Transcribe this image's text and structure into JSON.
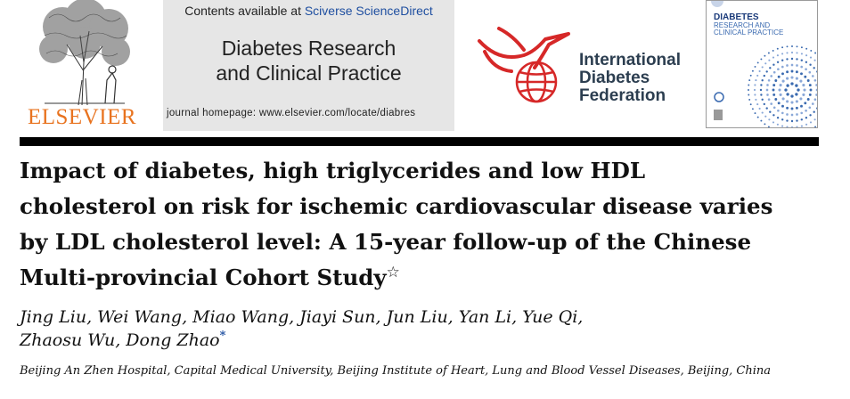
{
  "publisher": {
    "wordmark": "ELSEVIER",
    "wordmark_color": "#e8731f"
  },
  "journal_box": {
    "contents_prefix": "Contents available at ",
    "contents_link": "Sciverse ScienceDirect",
    "journal_title_line1": "Diabetes Research",
    "journal_title_line2": "and Clinical Practice",
    "homepage": "journal homepage: www.elsevier.com/locate/diabres",
    "background": "#e6e6e6",
    "link_color": "#1f4fa0"
  },
  "idf_logo": {
    "line1": "International",
    "line2": "Diabetes",
    "line3": "Federation",
    "emblem_color": "#d62828",
    "text_color": "#2c3e50"
  },
  "cover": {
    "title_line1": "DIABETES",
    "title_line2": "RESEARCH AND",
    "title_line3": "CLINICAL PRACTICE"
  },
  "article": {
    "title_line1": "Impact of diabetes, high triglycerides and low HDL",
    "title_line2": "cholesterol on risk for ischemic cardiovascular disease varies",
    "title_line3": "by LDL cholesterol level: A 15-year follow-up of the Chinese",
    "title_line4": "Multi-provincial Cohort Study",
    "title_mark": "☆",
    "authors_line1": "Jing Liu, Wei Wang, Miao Wang, Jiayi Sun, Jun Liu, Yan Li, Yue Qi,",
    "authors_line2": "Zhaosu Wu, Dong Zhao",
    "corresponding_mark": "*",
    "affiliation": "Beijing An Zhen Hospital, Capital Medical University, Beijing Institute of Heart, Lung and Blood Vessel Diseases, Beijing, China"
  }
}
